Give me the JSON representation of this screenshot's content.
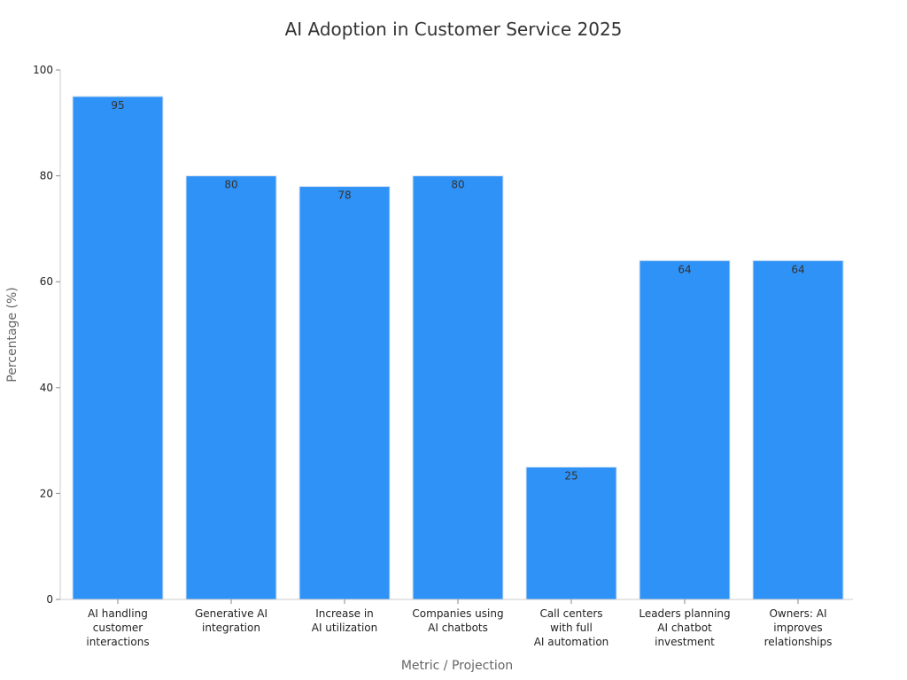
{
  "chart_data": {
    "type": "bar",
    "title": "AI Adoption in Customer Service 2025",
    "xlabel": "Metric / Projection",
    "ylabel": "Percentage (%)",
    "ylim": [
      0,
      100
    ],
    "yticks": [
      0,
      20,
      40,
      60,
      80,
      100
    ],
    "grid": false,
    "categories": [
      [
        "AI handling",
        "customer",
        "interactions"
      ],
      [
        "Generative AI",
        "integration"
      ],
      [
        "Increase in",
        "AI utilization"
      ],
      [
        "Companies using",
        "AI chatbots"
      ],
      [
        "Call centers",
        "with full",
        "AI automation"
      ],
      [
        "Leaders planning",
        "AI chatbot",
        "investment"
      ],
      [
        "Owners: AI",
        "improves",
        "relationships"
      ]
    ],
    "values": [
      95,
      80,
      78,
      80,
      25,
      64,
      64
    ],
    "bar_color": "#2f92f7"
  }
}
